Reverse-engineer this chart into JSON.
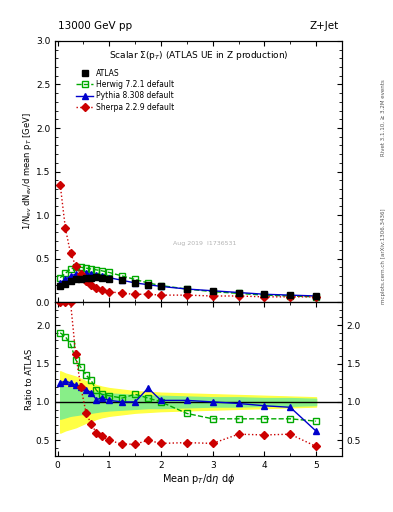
{
  "title_top": "13000 GeV pp",
  "title_right": "Z+Jet",
  "main_title": "Scalar Σ(p_{T}) (ATLAS UE in Z production)",
  "xlabel": "Mean p_{T}/dη dφ",
  "ylabel_main": "1/N_{ev} dN_{ev}/d mean p_{T} [GeV]",
  "ylabel_ratio": "Ratio to ATLAS",
  "side_text_top": "Rivet 3.1.10, ≥ 3.2M events",
  "side_text_bottom": "mcplots.cern.ch [arXiv:1306.3436]",
  "watermark": "Aug 2019  I1736531",
  "atlas_x": [
    0.05,
    0.15,
    0.25,
    0.35,
    0.45,
    0.55,
    0.65,
    0.75,
    0.85,
    1.0,
    1.25,
    1.5,
    1.75,
    2.0,
    2.5,
    3.0,
    3.5,
    4.0,
    4.5,
    5.0
  ],
  "atlas_y": [
    0.18,
    0.21,
    0.24,
    0.26,
    0.27,
    0.28,
    0.28,
    0.29,
    0.28,
    0.27,
    0.25,
    0.22,
    0.2,
    0.18,
    0.15,
    0.13,
    0.11,
    0.09,
    0.08,
    0.07
  ],
  "herwig_x": [
    0.05,
    0.15,
    0.25,
    0.35,
    0.45,
    0.55,
    0.65,
    0.75,
    0.85,
    1.0,
    1.25,
    1.5,
    1.75,
    2.0,
    2.5,
    3.0,
    3.5,
    4.0,
    4.5,
    5.0
  ],
  "herwig_y": [
    0.28,
    0.33,
    0.38,
    0.4,
    0.4,
    0.39,
    0.38,
    0.37,
    0.36,
    0.34,
    0.3,
    0.26,
    0.22,
    0.19,
    0.15,
    0.12,
    0.1,
    0.08,
    0.07,
    0.06
  ],
  "pythia_x": [
    0.05,
    0.15,
    0.25,
    0.35,
    0.45,
    0.55,
    0.65,
    0.75,
    0.85,
    1.0,
    1.25,
    1.5,
    1.75,
    2.0,
    2.5,
    3.0,
    3.5,
    4.0,
    4.5,
    5.0
  ],
  "pythia_y": [
    0.22,
    0.26,
    0.3,
    0.32,
    0.33,
    0.33,
    0.32,
    0.31,
    0.3,
    0.28,
    0.25,
    0.22,
    0.2,
    0.18,
    0.15,
    0.13,
    0.11,
    0.09,
    0.08,
    0.07
  ],
  "sherpa_x": [
    0.05,
    0.15,
    0.25,
    0.35,
    0.45,
    0.55,
    0.65,
    0.75,
    0.85,
    1.0,
    1.25,
    1.5,
    1.75,
    2.0,
    2.5,
    3.0,
    3.5,
    4.0,
    4.5,
    5.0
  ],
  "sherpa_y": [
    1.35,
    0.85,
    0.56,
    0.42,
    0.32,
    0.24,
    0.2,
    0.16,
    0.14,
    0.12,
    0.1,
    0.09,
    0.09,
    0.08,
    0.08,
    0.07,
    0.07,
    0.06,
    0.06,
    0.06
  ],
  "ratio_herwig": [
    1.9,
    1.85,
    1.75,
    1.55,
    1.45,
    1.35,
    1.28,
    1.15,
    1.1,
    1.08,
    1.05,
    1.1,
    1.05,
    1.0,
    0.85,
    0.78,
    0.78,
    0.78,
    0.78,
    0.75
  ],
  "ratio_pythia": [
    1.25,
    1.27,
    1.25,
    1.22,
    1.2,
    1.16,
    1.12,
    1.03,
    1.05,
    1.02,
    1.0,
    1.0,
    1.18,
    1.02,
    1.02,
    1.0,
    0.98,
    0.95,
    0.93,
    0.62
  ],
  "ratio_sherpa": [
    2.3,
    2.3,
    2.3,
    1.62,
    1.19,
    0.86,
    0.71,
    0.6,
    0.55,
    0.5,
    0.45,
    0.45,
    0.5,
    0.46,
    0.47,
    0.46,
    0.58,
    0.57,
    0.58,
    0.42
  ],
  "band_x": [
    0.05,
    0.15,
    0.25,
    0.35,
    0.45,
    0.55,
    0.65,
    0.75,
    0.85,
    1.0,
    1.25,
    1.5,
    1.75,
    2.0,
    2.5,
    3.0,
    3.5,
    4.0,
    4.5,
    5.0
  ],
  "band_yellow_low": [
    0.6,
    0.63,
    0.65,
    0.67,
    0.7,
    0.73,
    0.75,
    0.78,
    0.8,
    0.82,
    0.84,
    0.86,
    0.87,
    0.88,
    0.89,
    0.9,
    0.91,
    0.92,
    0.93,
    0.94
  ],
  "band_yellow_high": [
    1.4,
    1.37,
    1.35,
    1.33,
    1.3,
    1.27,
    1.25,
    1.22,
    1.2,
    1.18,
    1.16,
    1.14,
    1.13,
    1.12,
    1.11,
    1.1,
    1.09,
    1.08,
    1.07,
    1.06
  ],
  "band_green_low": [
    0.78,
    0.8,
    0.82,
    0.83,
    0.84,
    0.85,
    0.86,
    0.87,
    0.88,
    0.89,
    0.9,
    0.91,
    0.92,
    0.92,
    0.93,
    0.94,
    0.94,
    0.95,
    0.95,
    0.96
  ],
  "band_green_high": [
    1.22,
    1.2,
    1.18,
    1.17,
    1.16,
    1.15,
    1.14,
    1.13,
    1.12,
    1.11,
    1.1,
    1.09,
    1.08,
    1.08,
    1.07,
    1.06,
    1.06,
    1.05,
    1.05,
    1.04
  ],
  "main_ylim": [
    0.0,
    3.0
  ],
  "ratio_ylim": [
    0.3,
    2.3
  ],
  "xlim": [
    -0.05,
    5.5
  ],
  "color_atlas": "#000000",
  "color_herwig": "#00aa00",
  "color_pythia": "#0000cc",
  "color_sherpa": "#cc0000",
  "color_band_yellow": "#ffff44",
  "color_band_green": "#88ee88"
}
